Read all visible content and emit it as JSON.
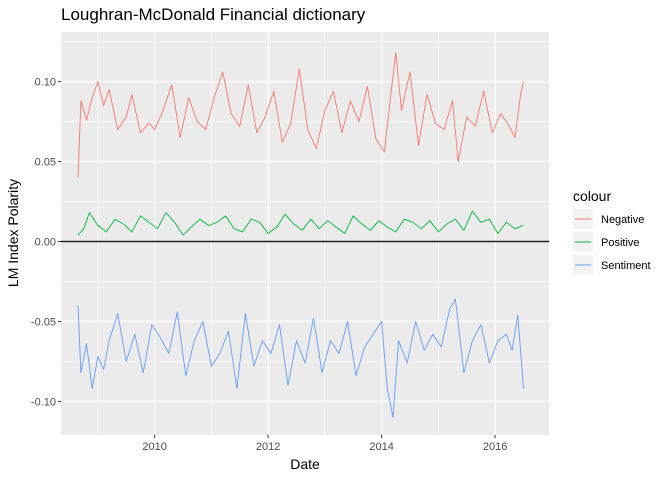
{
  "chart_data": {
    "type": "line",
    "title": "Loughran-McDonald Financial dictionary",
    "xlabel": "Date",
    "ylabel": "LM Index Polarity",
    "xlim": [
      2008.35,
      2016.95
    ],
    "ylim": [
      -0.121,
      0.131
    ],
    "x_ticks": [
      2010,
      2012,
      2014,
      2016
    ],
    "x_tick_labels": [
      "2010",
      "2012",
      "2014",
      "2016"
    ],
    "y_ticks": [
      -0.1,
      -0.05,
      0.0,
      0.05,
      0.1
    ],
    "y_tick_labels": [
      "-0.10",
      "-0.05",
      "0.00",
      "0.05",
      "0.10"
    ],
    "grid": true,
    "reference_line_y": 0,
    "legend": {
      "title": "colour",
      "position": "right",
      "entries": [
        "Negative",
        "Positive",
        "Sentiment"
      ]
    },
    "series": [
      {
        "name": "Negative",
        "color": "#F8766D",
        "x": [
          2008.65,
          2008.7,
          2008.75,
          2008.8,
          2008.9,
          2009.0,
          2009.1,
          2009.2,
          2009.35,
          2009.5,
          2009.6,
          2009.75,
          2009.9,
          2010.0,
          2010.15,
          2010.3,
          2010.45,
          2010.6,
          2010.75,
          2010.9,
          2011.05,
          2011.2,
          2011.35,
          2011.5,
          2011.65,
          2011.8,
          2011.95,
          2012.1,
          2012.25,
          2012.4,
          2012.55,
          2012.7,
          2012.85,
          2013.0,
          2013.15,
          2013.3,
          2013.45,
          2013.6,
          2013.75,
          2013.9,
          2014.05,
          2014.15,
          2014.25,
          2014.35,
          2014.5,
          2014.65,
          2014.8,
          2014.95,
          2015.1,
          2015.25,
          2015.35,
          2015.5,
          2015.65,
          2015.8,
          2015.95,
          2016.1,
          2016.25,
          2016.35,
          2016.45,
          2016.5
        ],
        "y": [
          0.04,
          0.088,
          0.082,
          0.076,
          0.09,
          0.1,
          0.085,
          0.095,
          0.07,
          0.078,
          0.092,
          0.068,
          0.074,
          0.07,
          0.082,
          0.098,
          0.065,
          0.09,
          0.075,
          0.07,
          0.09,
          0.106,
          0.08,
          0.072,
          0.098,
          0.068,
          0.078,
          0.094,
          0.062,
          0.074,
          0.108,
          0.07,
          0.058,
          0.082,
          0.094,
          0.068,
          0.088,
          0.075,
          0.097,
          0.064,
          0.056,
          0.088,
          0.118,
          0.082,
          0.106,
          0.06,
          0.092,
          0.074,
          0.07,
          0.088,
          0.05,
          0.078,
          0.072,
          0.094,
          0.068,
          0.08,
          0.072,
          0.065,
          0.092,
          0.1
        ]
      },
      {
        "name": "Positive",
        "color": "#00BA38",
        "x": [
          2008.65,
          2008.75,
          2008.85,
          2009.0,
          2009.15,
          2009.3,
          2009.45,
          2009.6,
          2009.75,
          2009.9,
          2010.05,
          2010.2,
          2010.35,
          2010.5,
          2010.65,
          2010.8,
          2010.95,
          2011.1,
          2011.25,
          2011.4,
          2011.55,
          2011.7,
          2011.85,
          2012.0,
          2012.15,
          2012.3,
          2012.45,
          2012.6,
          2012.75,
          2012.9,
          2013.05,
          2013.2,
          2013.35,
          2013.5,
          2013.65,
          2013.8,
          2013.95,
          2014.1,
          2014.25,
          2014.4,
          2014.55,
          2014.7,
          2014.85,
          2015.0,
          2015.15,
          2015.3,
          2015.45,
          2015.6,
          2015.75,
          2015.9,
          2016.05,
          2016.2,
          2016.35,
          2016.5
        ],
        "y": [
          0.004,
          0.008,
          0.018,
          0.01,
          0.006,
          0.014,
          0.011,
          0.006,
          0.016,
          0.012,
          0.008,
          0.018,
          0.012,
          0.004,
          0.009,
          0.014,
          0.01,
          0.012,
          0.016,
          0.008,
          0.006,
          0.014,
          0.012,
          0.005,
          0.009,
          0.017,
          0.011,
          0.007,
          0.014,
          0.008,
          0.013,
          0.009,
          0.005,
          0.016,
          0.011,
          0.007,
          0.013,
          0.009,
          0.006,
          0.014,
          0.012,
          0.008,
          0.013,
          0.006,
          0.011,
          0.014,
          0.007,
          0.019,
          0.012,
          0.014,
          0.005,
          0.012,
          0.008,
          0.01
        ]
      },
      {
        "name": "Sentiment",
        "color": "#619CFF",
        "x": [
          2008.65,
          2008.7,
          2008.8,
          2008.9,
          2009.0,
          2009.1,
          2009.2,
          2009.35,
          2009.5,
          2009.65,
          2009.8,
          2009.95,
          2010.1,
          2010.25,
          2010.4,
          2010.55,
          2010.7,
          2010.85,
          2011.0,
          2011.15,
          2011.3,
          2011.45,
          2011.6,
          2011.75,
          2011.9,
          2012.05,
          2012.2,
          2012.35,
          2012.5,
          2012.65,
          2012.8,
          2012.95,
          2013.1,
          2013.25,
          2013.4,
          2013.55,
          2013.7,
          2013.85,
          2014.0,
          2014.1,
          2014.2,
          2014.3,
          2014.45,
          2014.6,
          2014.75,
          2014.9,
          2015.05,
          2015.2,
          2015.3,
          2015.45,
          2015.6,
          2015.75,
          2015.9,
          2016.05,
          2016.2,
          2016.3,
          2016.4,
          2016.5
        ],
        "y": [
          -0.04,
          -0.082,
          -0.064,
          -0.092,
          -0.072,
          -0.08,
          -0.062,
          -0.045,
          -0.075,
          -0.058,
          -0.082,
          -0.052,
          -0.06,
          -0.07,
          -0.044,
          -0.084,
          -0.062,
          -0.05,
          -0.078,
          -0.07,
          -0.056,
          -0.092,
          -0.045,
          -0.078,
          -0.062,
          -0.07,
          -0.052,
          -0.09,
          -0.062,
          -0.076,
          -0.048,
          -0.082,
          -0.062,
          -0.07,
          -0.05,
          -0.084,
          -0.066,
          -0.058,
          -0.05,
          -0.092,
          -0.11,
          -0.062,
          -0.076,
          -0.05,
          -0.068,
          -0.058,
          -0.066,
          -0.042,
          -0.036,
          -0.082,
          -0.062,
          -0.052,
          -0.076,
          -0.062,
          -0.058,
          -0.068,
          -0.046,
          -0.092
        ]
      }
    ]
  }
}
